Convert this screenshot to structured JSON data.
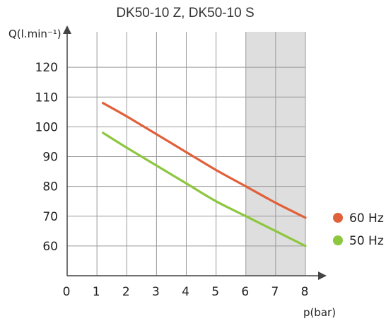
{
  "chart_data": {
    "type": "line",
    "title": "DK50-10 Z, DK50-10 S",
    "xlabel": "p(bar)",
    "ylabel": "Q(l.min⁻¹)",
    "xlim": [
      0,
      8
    ],
    "ylim": [
      50,
      130
    ],
    "x_ticks": [
      "0",
      "1",
      "2",
      "3",
      "4",
      "5",
      "6",
      "7",
      "8"
    ],
    "y_ticks": [
      "60",
      "70",
      "80",
      "90",
      "100",
      "110",
      "120"
    ],
    "grid": true,
    "shaded_region": {
      "x_from": 6,
      "x_to": 8,
      "color": "#dedede"
    },
    "legend_position": "right",
    "series": [
      {
        "name": "60 Hz",
        "color": "#e0603a",
        "x": [
          1.2,
          2,
          3,
          4,
          5,
          6,
          7,
          8
        ],
        "values": [
          108,
          103.5,
          97.5,
          91.5,
          85.5,
          80,
          74.5,
          69.5
        ]
      },
      {
        "name": "50 Hz",
        "color": "#8dc63f",
        "x": [
          1.2,
          2,
          3,
          4,
          5,
          6,
          7,
          8
        ],
        "values": [
          98,
          93,
          87,
          81,
          75,
          70,
          65,
          60
        ]
      }
    ]
  },
  "colors": {
    "grid": "#9a9a9a",
    "axis": "#444444"
  }
}
